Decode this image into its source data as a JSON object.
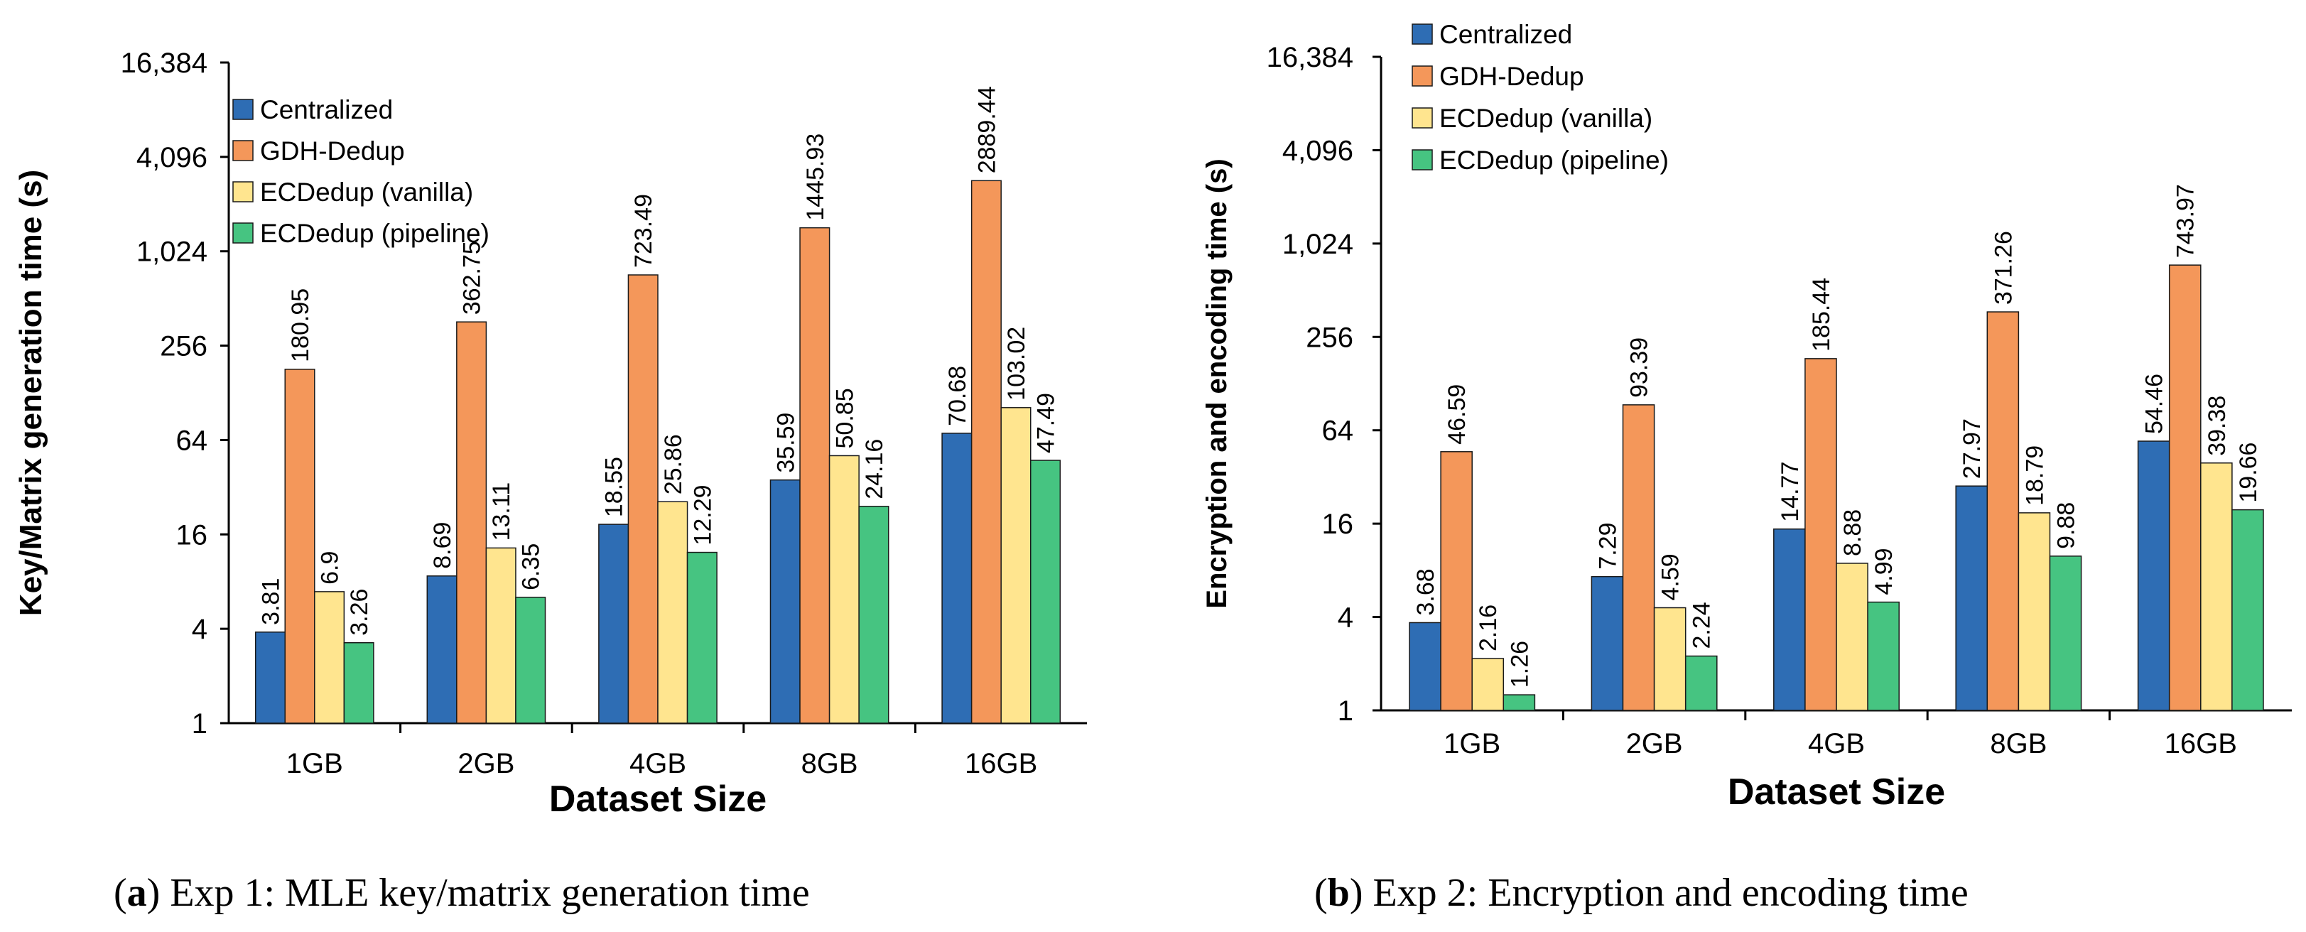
{
  "colors": {
    "Centralized": "#2e6db4",
    "GDH-Dedup": "#f4975a",
    "ECDedup (vanilla)": "#ffe58f",
    "ECDedup (pipeline)": "#46c481"
  },
  "chart_data": [
    {
      "type": "bar",
      "yscale": "log2",
      "categories": [
        "1GB",
        "2GB",
        "4GB",
        "8GB",
        "16GB"
      ],
      "series": [
        {
          "name": "Centralized",
          "values": [
            3.81,
            8.69,
            18.55,
            35.59,
            70.68
          ],
          "labels": [
            "3.81",
            "8.69",
            "18.55",
            "35.59",
            "70.68"
          ]
        },
        {
          "name": "GDH-Dedup",
          "values": [
            180.95,
            362.75,
            723.49,
            1445.93,
            2889.44
          ],
          "labels": [
            "180.95",
            "362.75",
            "723.49",
            "1445.93",
            "2889.44"
          ]
        },
        {
          "name": "ECDedup (vanilla)",
          "values": [
            6.9,
            13.11,
            25.86,
            50.85,
            103.02
          ],
          "labels": [
            "6.9",
            "13.11",
            "25.86",
            "50.85",
            "103.02"
          ]
        },
        {
          "name": "ECDedup (pipeline)",
          "values": [
            3.26,
            6.35,
            12.29,
            24.16,
            47.49
          ],
          "labels": [
            "3.26",
            "6.35",
            "12.29",
            "24.16",
            "47.49"
          ]
        }
      ],
      "yticks": [
        1,
        4,
        16,
        64,
        256,
        1024,
        4096,
        16384
      ],
      "ytick_labels": [
        "1",
        "4",
        "16",
        "64",
        "256",
        "1,024",
        "4,096",
        "16,384"
      ],
      "ylim": [
        1,
        16384
      ],
      "xlabel": "Dataset Size",
      "ylabel": "Key/Matrix generation time (s)",
      "legend": [
        "Centralized",
        "GDH-Dedup",
        "ECDedup (vanilla)",
        "ECDedup (pipeline)"
      ],
      "legend_position": "top-left",
      "caption_letter": "a",
      "caption_text": " Exp 1: MLE key/matrix generation time"
    },
    {
      "type": "bar",
      "yscale": "log2",
      "categories": [
        "1GB",
        "2GB",
        "4GB",
        "8GB",
        "16GB"
      ],
      "series": [
        {
          "name": "Centralized",
          "values": [
            3.68,
            7.29,
            14.77,
            27.97,
            54.46
          ],
          "labels": [
            "3.68",
            "7.29",
            "14.77",
            "27.97",
            "54.46"
          ]
        },
        {
          "name": "GDH-Dedup",
          "values": [
            46.59,
            93.39,
            185.44,
            371.26,
            743.97
          ],
          "labels": [
            "46.59",
            "93.39",
            "185.44",
            "371.26",
            "743.97"
          ]
        },
        {
          "name": "ECDedup (vanilla)",
          "values": [
            2.16,
            4.59,
            8.88,
            18.79,
            39.38
          ],
          "labels": [
            "2.16",
            "4.59",
            "8.88",
            "18.79",
            "39.38"
          ]
        },
        {
          "name": "ECDedup (pipeline)",
          "values": [
            1.26,
            2.24,
            4.99,
            9.88,
            19.66
          ],
          "labels": [
            "1.26",
            "2.24",
            "4.99",
            "9.88",
            "19.66"
          ]
        }
      ],
      "yticks": [
        1,
        4,
        16,
        64,
        256,
        1024,
        4096,
        16384
      ],
      "ytick_labels": [
        "1",
        "4",
        "16",
        "64",
        "256",
        "1,024",
        "4,096",
        "16,384"
      ],
      "ylim": [
        1,
        16384
      ],
      "xlabel": "Dataset Size",
      "ylabel": "Encryption and encoding time (s)",
      "legend": [
        "Centralized",
        "GDH-Dedup",
        "ECDedup (vanilla)",
        "ECDedup (pipeline)"
      ],
      "legend_position": "top-left",
      "caption_letter": "b",
      "caption_text": " Exp 2: Encryption and encoding time"
    }
  ]
}
